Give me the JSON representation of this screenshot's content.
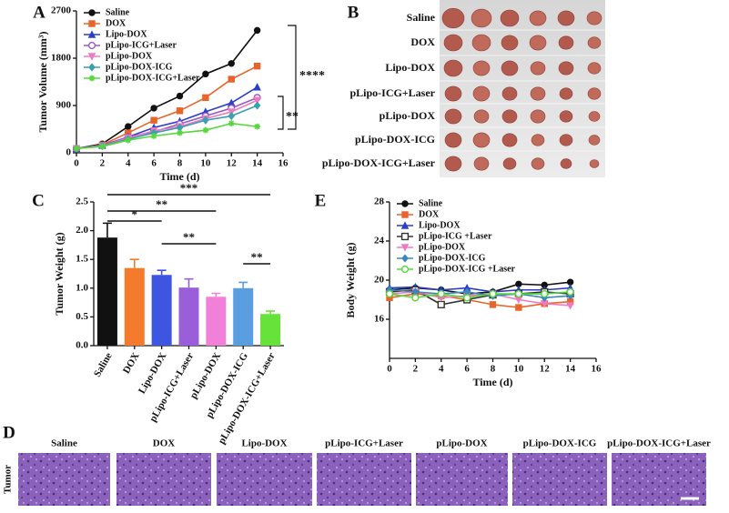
{
  "chart_data": [
    {
      "type": "line",
      "label": "A",
      "ylabel": "Tumor Volume (mm³)",
      "xlabel": "Time (d)",
      "x": [
        0,
        2,
        4,
        6,
        8,
        10,
        12,
        14
      ],
      "xlim": [
        0,
        16
      ],
      "xticks": [
        0,
        2,
        4,
        6,
        8,
        10,
        12,
        14,
        16
      ],
      "ylim": [
        0,
        2700
      ],
      "yticks": [
        0,
        900,
        1800,
        2700
      ],
      "legend": "upper left",
      "series": [
        {
          "name": "Saline",
          "color": "#111111",
          "marker": "circle",
          "values": [
            80,
            170,
            500,
            850,
            1080,
            1500,
            1700,
            2330
          ]
        },
        {
          "name": "DOX",
          "color": "#e8642a",
          "marker": "square",
          "values": [
            80,
            150,
            380,
            620,
            800,
            1050,
            1400,
            1650
          ]
        },
        {
          "name": "Lipo-DOX",
          "color": "#2a3fc8",
          "marker": "triangle",
          "values": [
            80,
            140,
            300,
            480,
            600,
            780,
            950,
            1250
          ]
        },
        {
          "name": "pLipo-ICG+Laser",
          "color": "#9b59c6",
          "marker": "circle-open",
          "values": [
            80,
            140,
            300,
            400,
            550,
            700,
            850,
            1050
          ]
        },
        {
          "name": "pLipo-DOX",
          "color": "#f07ac0",
          "marker": "triangle-down",
          "values": [
            80,
            130,
            280,
            420,
            500,
            650,
            780,
            1000
          ]
        },
        {
          "name": "pLipo-DOX-ICG",
          "color": "#3aa0b0",
          "marker": "diamond",
          "values": [
            80,
            130,
            260,
            380,
            480,
            620,
            700,
            900
          ]
        },
        {
          "name": "pLipo-DOX-ICG+Laser",
          "color": "#56d83c",
          "marker": "star",
          "values": [
            80,
            120,
            240,
            320,
            380,
            430,
            560,
            500
          ]
        }
      ],
      "annotations": [
        "****",
        "**"
      ]
    },
    {
      "type": "bar",
      "label": "C",
      "ylabel": "Tumor Weight (g)",
      "categories": [
        "Saline",
        "DOX",
        "Lipo-DOX",
        "pLipo-ICG+Laser",
        "pLipo-DOX",
        "pLipo-DOX-ICG",
        "pLipo-DOX-ICG+Laser"
      ],
      "values": [
        1.88,
        1.35,
        1.23,
        1.01,
        0.85,
        1.0,
        0.55
      ],
      "errors": [
        0.25,
        0.15,
        0.08,
        0.15,
        0.06,
        0.1,
        0.05
      ],
      "colors": [
        "#111111",
        "#f47a2c",
        "#3d55e0",
        "#9a5fd8",
        "#f080d8",
        "#5a9ee0",
        "#66e23a"
      ],
      "ylim": [
        0,
        2.5
      ],
      "yticks": [
        {
          "value": 0,
          "label": "0.0"
        },
        {
          "value": 0.5,
          "label": "0.5"
        },
        {
          "value": 1,
          "label": "1.0"
        },
        {
          "value": 1.5,
          "label": "1.5"
        },
        {
          "value": 2,
          "label": "2.0"
        },
        {
          "value": 2.5,
          "label": "2.5"
        }
      ],
      "annotations": [
        "*",
        "**",
        "***",
        "**",
        "**"
      ]
    },
    {
      "type": "line",
      "label": "E",
      "ylabel": "Body Weight (g)",
      "xlabel": "Time (d)",
      "x": [
        0,
        2,
        4,
        6,
        8,
        10,
        12,
        14
      ],
      "xlim": [
        0,
        16
      ],
      "xticks": [
        0,
        2,
        4,
        6,
        8,
        10,
        12,
        14,
        16
      ],
      "ylim": [
        12,
        28
      ],
      "yticks": [
        16,
        20,
        24,
        28
      ],
      "legend": "upper left",
      "series": [
        {
          "name": "Saline",
          "color": "#111111",
          "marker": "circle",
          "values": [
            19,
            19.2,
            19,
            18.6,
            18.8,
            19.6,
            19.5,
            19.8
          ]
        },
        {
          "name": "DOX",
          "color": "#e8642a",
          "marker": "square",
          "values": [
            18.2,
            18.6,
            18.4,
            18,
            17.5,
            17.2,
            17.6,
            17.8
          ]
        },
        {
          "name": "Lipo-DOX",
          "color": "#2a3fc8",
          "marker": "triangle",
          "values": [
            19.2,
            19.3,
            19,
            19.2,
            18.8,
            19,
            19,
            19.2
          ]
        },
        {
          "name": "pLipo-ICG +Laser",
          "color": "#333333",
          "marker": "square-open",
          "values": [
            18.8,
            19,
            17.5,
            18,
            18.5,
            18.6,
            18.8,
            18.6
          ]
        },
        {
          "name": "pLipo-DOX",
          "color": "#f07ac0",
          "marker": "triangle-down",
          "values": [
            18.6,
            18.8,
            18.2,
            18.4,
            18.6,
            18,
            17.6,
            17.4
          ]
        },
        {
          "name": "pLipo-DOX-ICG",
          "color": "#3a88c0",
          "marker": "diamond",
          "values": [
            19,
            18.8,
            18.6,
            18.8,
            18.4,
            18.6,
            18.2,
            18.4
          ]
        },
        {
          "name": "pLipo-DOX-ICG +Laser",
          "color": "#56d83c",
          "marker": "circle-open",
          "values": [
            18.6,
            18.2,
            18.6,
            18.2,
            18.6,
            18.6,
            18.6,
            18.8
          ]
        }
      ]
    }
  ],
  "panel_b": {
    "label": "B",
    "rows": [
      "Saline",
      "DOX",
      "Lipo-DOX",
      "pLipo-ICG+Laser",
      "pLipo-DOX",
      "pLipo-DOX-ICG",
      "pLipo-DOX-ICG+Laser"
    ]
  },
  "panel_d": {
    "label": "D",
    "row_label": "Tumor",
    "columns": [
      "Saline",
      "DOX",
      "Lipo-DOX",
      "pLipo-ICG+Laser",
      "pLipo-DOX",
      "pLipo-DOX-ICG",
      "pLipo-DOX-ICG+Laser"
    ]
  }
}
